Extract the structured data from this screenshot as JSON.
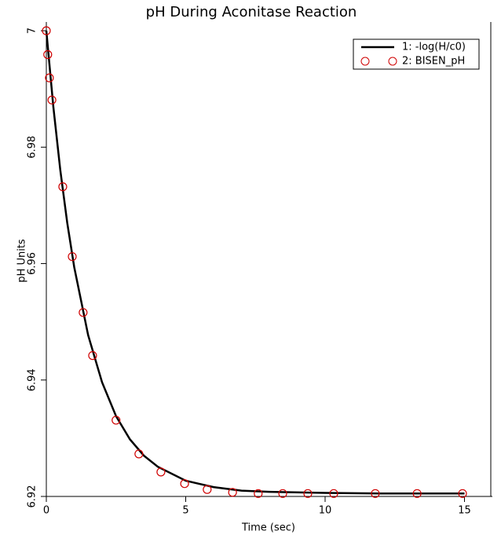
{
  "chart_data": {
    "type": "line",
    "title": "pH During Aconitase Reaction",
    "x_label": "Time (sec)",
    "y_label": "pH Units",
    "xlim": [
      0,
      16
    ],
    "ylim": [
      6.92,
      7.0015
    ],
    "xticks": [
      0,
      5,
      10,
      15
    ],
    "yticks": [
      6.92,
      6.94,
      6.96,
      6.98,
      7
    ],
    "legend": "top-right",
    "series": [
      {
        "name": "1: -log(H/c0)",
        "color": "#000000",
        "marker": "none",
        "x": [
          0,
          0.25,
          0.5,
          0.75,
          1,
          1.5,
          2,
          2.5,
          3,
          3.5,
          4,
          5,
          6,
          7,
          8,
          10,
          12,
          15
        ],
        "values": [
          7.0,
          6.987,
          6.9761,
          6.967,
          6.9594,
          6.9477,
          6.9396,
          6.9338,
          6.9298,
          6.927,
          6.9251,
          6.9227,
          6.9216,
          6.921,
          6.9208,
          6.9206,
          6.9205,
          6.9205
        ]
      },
      {
        "name": "2: BISEN_pH",
        "color": "#d00000",
        "marker": "circle",
        "x": [
          0,
          0.05,
          0.11,
          0.2,
          0.59,
          0.93,
          1.32,
          1.66,
          2.5,
          3.32,
          4.11,
          4.96,
          5.77,
          6.68,
          7.6,
          8.48,
          9.38,
          10.31,
          11.8,
          13.3,
          14.93
        ],
        "values": [
          7.0,
          6.9959,
          6.9919,
          6.9881,
          6.9732,
          6.9612,
          6.9516,
          6.9442,
          6.9331,
          6.9273,
          6.9242,
          6.9222,
          6.9212,
          6.9207,
          6.9205,
          6.9205,
          6.9205,
          6.9205,
          6.9205,
          6.9205,
          6.9205
        ]
      }
    ]
  }
}
